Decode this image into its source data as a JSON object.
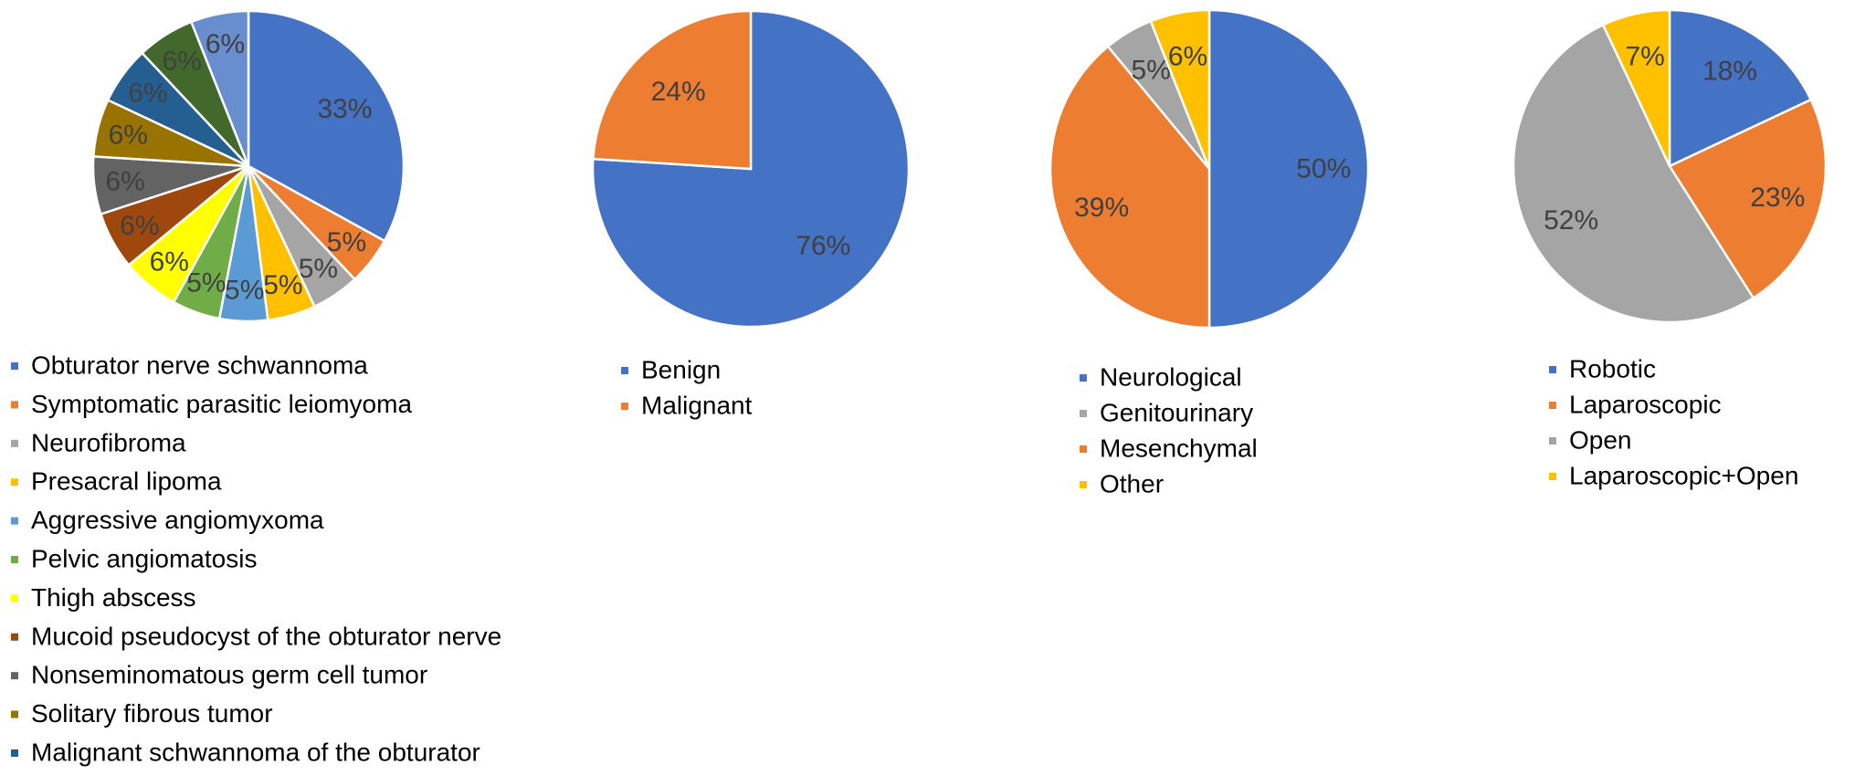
{
  "chart_data": [
    {
      "type": "pie",
      "title": "",
      "slices": [
        {
          "label": "Obturator nerve schwannoma",
          "value": 33,
          "text": "33%",
          "color": "#4472C4"
        },
        {
          "label": "Symptomatic parasitic leiomyoma",
          "value": 5,
          "text": "5%",
          "color": "#ED7D31"
        },
        {
          "label": "Neurofibroma",
          "value": 5,
          "text": "5%",
          "color": "#A5A5A5"
        },
        {
          "label": "Presacral lipoma",
          "value": 5,
          "text": "5%",
          "color": "#FFC000"
        },
        {
          "label": "Aggressive angiomyxoma",
          "value": 5,
          "text": "5%",
          "color": "#5B9BD5"
        },
        {
          "label": "Pelvic angiomatosis",
          "value": 5,
          "text": "5%",
          "color": "#70AD47"
        },
        {
          "label": "Thigh abscess",
          "value": 6,
          "text": "6%",
          "color": "#FFFF00"
        },
        {
          "label": "Mucoid pseudocyst of the obturator nerve",
          "value": 6,
          "text": "6%",
          "color": "#9E480E"
        },
        {
          "label": "Nonseminomatous germ cell tumor",
          "value": 6,
          "text": "6%",
          "color": "#636363"
        },
        {
          "label": "Solitary fibrous tumor",
          "value": 6,
          "text": "6%",
          "color": "#997300"
        },
        {
          "label": "Malignant schwannoma of the obturator",
          "value": 6,
          "text": "6%",
          "color": "#255E91"
        },
        {
          "label": "",
          "value": 6,
          "text": "6%",
          "color": "#43682B"
        },
        {
          "label": "",
          "value": 6,
          "text": "6%",
          "color": "#698ED0"
        }
      ],
      "legend_placement": "bottom"
    },
    {
      "type": "pie",
      "title": "",
      "slices": [
        {
          "label": "Benign",
          "value": 76,
          "text": "76%",
          "color": "#4472C4"
        },
        {
          "label": "Malignant",
          "value": 24,
          "text": "24%",
          "color": "#ED7D31"
        }
      ],
      "legend_placement": "bottom"
    },
    {
      "type": "pie",
      "title": "",
      "slices": [
        {
          "label": "Neurological",
          "value": 50,
          "text": "50%",
          "color": "#4472C4"
        },
        {
          "label": "Mesenchymal",
          "value": 39,
          "text": "39%",
          "color": "#ED7D31"
        },
        {
          "label": "Genitourinary",
          "value": 5,
          "text": "5%",
          "color": "#A5A5A5"
        },
        {
          "label": "Other",
          "value": 6,
          "text": "6%",
          "color": "#FFC000"
        }
      ],
      "legend_order": [
        "Neurological",
        "Genitourinary",
        "Mesenchymal",
        "Other"
      ],
      "legend_placement": "bottom"
    },
    {
      "type": "pie",
      "title": "",
      "slices": [
        {
          "label": "Robotic",
          "value": 18,
          "text": "18%",
          "color": "#4472C4"
        },
        {
          "label": "Laparoscopic",
          "value": 23,
          "text": "23%",
          "color": "#ED7D31"
        },
        {
          "label": "Open",
          "value": 52,
          "text": "52%",
          "color": "#A5A5A5"
        },
        {
          "label": "Laparoscopic+Open",
          "value": 7,
          "text": "7%",
          "color": "#FFC000"
        }
      ],
      "legend_placement": "bottom"
    }
  ]
}
